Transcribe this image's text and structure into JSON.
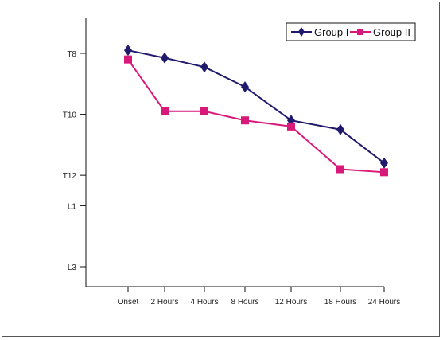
{
  "chart_data": {
    "type": "line",
    "title": "",
    "xlabel": "",
    "ylabel": "",
    "categories": [
      "Onset",
      "2 Hours",
      "4 Hours",
      "8 Hours",
      "12 Hours",
      "18 Hours",
      "24 Hours"
    ],
    "y_ticks": [
      {
        "label": "T8",
        "level": 8
      },
      {
        "label": "T10",
        "level": 10
      },
      {
        "label": "T12",
        "level": 12
      },
      {
        "label": "L1",
        "level": 13
      },
      {
        "label": "L3",
        "level": 15
      }
    ],
    "ylim": [
      7.2,
      15.6
    ],
    "y_inverted": true,
    "grid": false,
    "legend_position": "top-right",
    "series": [
      {
        "name": "Group I",
        "marker": "diamond",
        "color": "#1f1a6b",
        "values": [
          7.9,
          8.15,
          8.45,
          9.1,
          10.2,
          10.5,
          11.6
        ]
      },
      {
        "name": "Group II",
        "marker": "square",
        "color": "#d9197a",
        "values": [
          8.2,
          9.9,
          9.9,
          10.2,
          10.4,
          11.8,
          11.9
        ]
      }
    ]
  }
}
